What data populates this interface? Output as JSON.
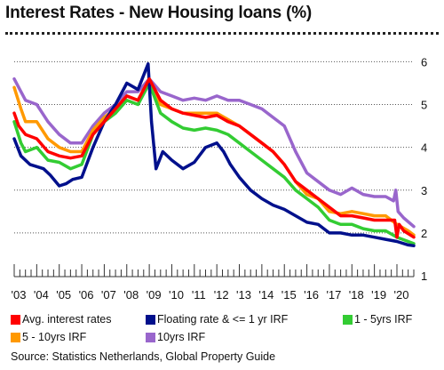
{
  "chart_data": {
    "type": "line",
    "title": "Interest Rates - New Housing loans (%)",
    "x_tick_labels": [
      "'03",
      "'04",
      "'05",
      "'06",
      "'07",
      "'08",
      "'09",
      "'10",
      "'11",
      "'12",
      "'13",
      "'14",
      "'15",
      "'16",
      "'17",
      "'18",
      "'19",
      "'20"
    ],
    "x_range": [
      2003.0,
      2020.75
    ],
    "y_ticks": [
      1,
      2,
      3,
      4,
      5,
      6
    ],
    "ylim": [
      1,
      6.3
    ],
    "y_axis_side": "right",
    "grid": "horizontal dotted",
    "legend_position": "bottom",
    "series": [
      {
        "name": "Avg. interest rates",
        "color": "#ff0000",
        "x": [
          2003.0,
          2003.2,
          2003.5,
          2004.0,
          2004.5,
          2005.0,
          2005.5,
          2006.0,
          2006.5,
          2007.0,
          2007.5,
          2008.0,
          2008.5,
          2009.0,
          2009.5,
          2010.0,
          2010.5,
          2011.0,
          2011.5,
          2012.0,
          2012.5,
          2013.0,
          2013.5,
          2014.0,
          2014.5,
          2015.0,
          2015.5,
          2016.0,
          2016.5,
          2017.0,
          2017.5,
          2018.0,
          2018.5,
          2019.0,
          2019.5,
          2019.9,
          2020.0,
          2020.1,
          2020.3,
          2020.75
        ],
        "y": [
          4.8,
          4.5,
          4.3,
          4.2,
          3.9,
          3.8,
          3.75,
          3.8,
          4.3,
          4.6,
          4.9,
          5.2,
          5.1,
          5.6,
          5.1,
          4.9,
          4.8,
          4.75,
          4.7,
          4.75,
          4.6,
          4.5,
          4.3,
          4.1,
          3.9,
          3.6,
          3.2,
          3.0,
          2.8,
          2.6,
          2.4,
          2.4,
          2.35,
          2.3,
          2.3,
          2.3,
          1.9,
          2.2,
          2.05,
          1.9
        ]
      },
      {
        "name": "Floating rate & <= 1 yr IRF",
        "color": "#00108c",
        "x": [
          2003.0,
          2003.3,
          2003.7,
          2004.0,
          2004.3,
          2004.6,
          2005.0,
          2005.3,
          2005.6,
          2006.0,
          2006.5,
          2007.0,
          2007.5,
          2008.0,
          2008.5,
          2008.95,
          2009.1,
          2009.3,
          2009.6,
          2010.0,
          2010.5,
          2011.0,
          2011.5,
          2012.0,
          2012.3,
          2012.6,
          2013.0,
          2013.5,
          2014.0,
          2014.5,
          2015.0,
          2015.5,
          2016.0,
          2016.5,
          2017.0,
          2017.5,
          2018.0,
          2018.5,
          2019.0,
          2019.5,
          2020.0,
          2020.5,
          2020.75
        ],
        "y": [
          4.2,
          3.8,
          3.6,
          3.55,
          3.5,
          3.35,
          3.1,
          3.15,
          3.25,
          3.3,
          4.0,
          4.6,
          5.0,
          5.5,
          5.35,
          5.95,
          4.6,
          3.5,
          3.9,
          3.7,
          3.5,
          3.65,
          4.0,
          4.1,
          3.9,
          3.6,
          3.3,
          3.0,
          2.8,
          2.65,
          2.55,
          2.4,
          2.25,
          2.2,
          2.0,
          2.0,
          1.95,
          1.95,
          1.9,
          1.85,
          1.8,
          1.72,
          1.7
        ]
      },
      {
        "name": "1 - 5yrs IRF",
        "color": "#33cc33",
        "x": [
          2003.0,
          2003.3,
          2003.5,
          2004.0,
          2004.5,
          2005.0,
          2005.5,
          2006.0,
          2006.5,
          2007.0,
          2007.5,
          2008.0,
          2008.5,
          2009.0,
          2009.5,
          2010.0,
          2010.5,
          2011.0,
          2011.5,
          2012.0,
          2012.5,
          2013.0,
          2013.5,
          2014.0,
          2014.5,
          2015.0,
          2015.5,
          2016.0,
          2016.5,
          2017.0,
          2017.5,
          2018.0,
          2018.5,
          2019.0,
          2019.5,
          2020.0,
          2020.5,
          2020.75
        ],
        "y": [
          4.6,
          4.1,
          3.9,
          4.0,
          3.7,
          3.65,
          3.5,
          3.6,
          4.3,
          4.6,
          4.8,
          5.1,
          5.0,
          5.5,
          4.8,
          4.6,
          4.45,
          4.4,
          4.45,
          4.4,
          4.3,
          4.1,
          3.9,
          3.7,
          3.5,
          3.3,
          3.0,
          2.8,
          2.6,
          2.3,
          2.2,
          2.2,
          2.1,
          2.05,
          2.05,
          1.9,
          1.8,
          1.75
        ]
      },
      {
        "name": "5 - 10yrs IRF",
        "color": "#ff9900",
        "x": [
          2003.0,
          2003.3,
          2003.5,
          2004.0,
          2004.5,
          2005.0,
          2005.5,
          2006.0,
          2006.5,
          2007.0,
          2007.5,
          2008.0,
          2008.5,
          2009.0,
          2009.5,
          2010.0,
          2010.5,
          2011.0,
          2011.5,
          2012.0,
          2012.5,
          2013.0,
          2013.5,
          2014.0,
          2014.5,
          2015.0,
          2015.5,
          2016.0,
          2016.5,
          2017.0,
          2017.5,
          2018.0,
          2018.5,
          2019.0,
          2019.5,
          2020.0,
          2020.5,
          2020.75
        ],
        "y": [
          5.4,
          4.9,
          4.6,
          4.6,
          4.2,
          4.0,
          3.9,
          3.9,
          4.4,
          4.7,
          4.9,
          5.2,
          5.1,
          5.6,
          5.0,
          4.9,
          4.8,
          4.8,
          4.8,
          4.8,
          4.65,
          4.5,
          4.3,
          4.1,
          3.9,
          3.6,
          3.2,
          2.9,
          2.8,
          2.5,
          2.45,
          2.5,
          2.45,
          2.4,
          2.4,
          2.2,
          2.05,
          1.95
        ]
      },
      {
        "name": "10yrs IRF",
        "color": "#9966cc",
        "x": [
          2003.0,
          2003.3,
          2003.5,
          2004.0,
          2004.5,
          2005.0,
          2005.5,
          2006.0,
          2006.5,
          2007.0,
          2007.5,
          2008.0,
          2008.5,
          2009.0,
          2009.5,
          2010.0,
          2010.5,
          2011.0,
          2011.5,
          2012.0,
          2012.5,
          2013.0,
          2013.5,
          2014.0,
          2014.5,
          2015.0,
          2015.5,
          2016.0,
          2016.5,
          2017.0,
          2017.5,
          2018.0,
          2018.5,
          2019.0,
          2019.5,
          2019.85,
          2019.95,
          2020.05,
          2020.3,
          2020.75
        ],
        "y": [
          5.6,
          5.3,
          5.1,
          5.0,
          4.6,
          4.3,
          4.1,
          4.1,
          4.5,
          4.8,
          5.0,
          5.3,
          5.3,
          5.6,
          5.3,
          5.2,
          5.1,
          5.15,
          5.1,
          5.2,
          5.1,
          5.1,
          5.0,
          4.9,
          4.7,
          4.5,
          3.9,
          3.4,
          3.2,
          3.0,
          2.9,
          3.05,
          2.9,
          2.85,
          2.85,
          2.75,
          3.0,
          2.5,
          2.35,
          2.15
        ]
      }
    ]
  },
  "source": "Source: Statistics Netherlands, Global Property Guide"
}
